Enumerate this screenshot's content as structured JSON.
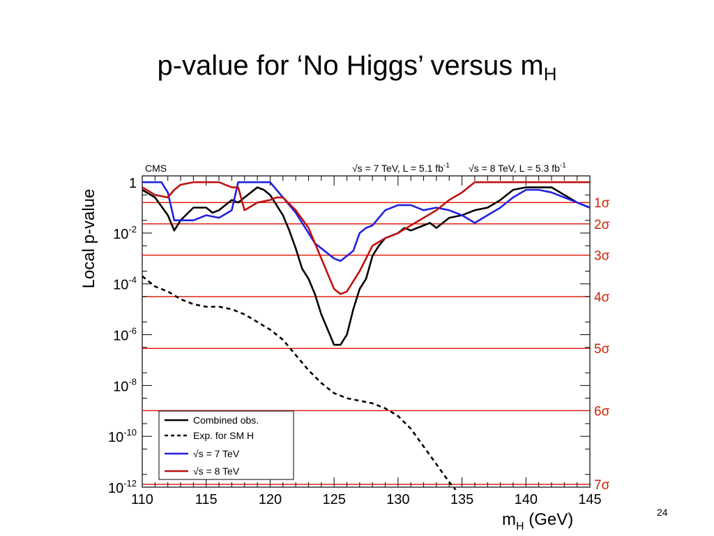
{
  "slide": {
    "title_main": "p-value for ‘No Higgs’ versus m",
    "title_sub": "H",
    "page_number": "24"
  },
  "chart_data": {
    "type": "line",
    "title": "",
    "experiment_label": "CMS",
    "energy_label_1": "√s = 7 TeV, L = 5.1 fb",
    "energy_label_1_sup": "-1",
    "energy_label_2": "√s = 8 TeV, L = 5.3 fb",
    "energy_label_2_sup": "-1",
    "xlabel_main": "m",
    "xlabel_sub": "H",
    "xlabel_rest": " (GeV)",
    "ylabel": "Local p-value",
    "x_range": [
      110,
      145
    ],
    "y_scale": "log",
    "y_range_log10": [
      -12,
      0.25
    ],
    "x_ticks": [
      110,
      115,
      120,
      125,
      130,
      135,
      140,
      145
    ],
    "y_ticks": [
      {
        "exp": 0,
        "label": "1",
        "sup": ""
      },
      {
        "exp": -2,
        "label": "10",
        "sup": "-2"
      },
      {
        "exp": -4,
        "label": "10",
        "sup": "-4"
      },
      {
        "exp": -6,
        "label": "10",
        "sup": "-6"
      },
      {
        "exp": -8,
        "label": "10",
        "sup": "-8"
      },
      {
        "exp": -10,
        "label": "10",
        "sup": "-10"
      },
      {
        "exp": -12,
        "label": "10",
        "sup": "-12"
      }
    ],
    "sigma_lines": [
      {
        "label": "1σ",
        "log10p": -0.8
      },
      {
        "label": "2σ",
        "log10p": -1.64
      },
      {
        "label": "3σ",
        "log10p": -2.87
      },
      {
        "label": "4σ",
        "log10p": -4.5
      },
      {
        "label": "5σ",
        "log10p": -6.54
      },
      {
        "label": "6σ",
        "log10p": -8.99
      },
      {
        "label": "7σ",
        "log10p": -11.89
      }
    ],
    "series": [
      {
        "name": "Combined obs.",
        "color": "#000000",
        "style": "solid",
        "points": [
          [
            110,
            -0.3
          ],
          [
            111,
            -0.6
          ],
          [
            112,
            -1.3
          ],
          [
            112.5,
            -1.9
          ],
          [
            113,
            -1.5
          ],
          [
            114,
            -1.0
          ],
          [
            115,
            -1.0
          ],
          [
            115.5,
            -1.2
          ],
          [
            116,
            -1.1
          ],
          [
            116.5,
            -0.9
          ],
          [
            117,
            -0.7
          ],
          [
            117.5,
            -0.8
          ],
          [
            118,
            -0.6
          ],
          [
            118.5,
            -0.4
          ],
          [
            119,
            -0.2
          ],
          [
            119.5,
            -0.3
          ],
          [
            120,
            -0.5
          ],
          [
            121,
            -1.3
          ],
          [
            121.5,
            -1.9
          ],
          [
            122,
            -2.6
          ],
          [
            122.5,
            -3.4
          ],
          [
            123,
            -3.8
          ],
          [
            123.5,
            -4.4
          ],
          [
            124,
            -5.2
          ],
          [
            124.5,
            -5.8
          ],
          [
            125,
            -6.4
          ],
          [
            125.5,
            -6.4
          ],
          [
            126,
            -6.0
          ],
          [
            126.5,
            -5.0
          ],
          [
            127,
            -4.2
          ],
          [
            127.5,
            -3.8
          ],
          [
            128,
            -2.9
          ],
          [
            128.5,
            -2.5
          ],
          [
            129,
            -2.2
          ],
          [
            130,
            -2.0
          ],
          [
            130.5,
            -1.8
          ],
          [
            131,
            -1.9
          ],
          [
            132,
            -1.7
          ],
          [
            132.5,
            -1.6
          ],
          [
            133,
            -1.8
          ],
          [
            134,
            -1.4
          ],
          [
            135,
            -1.3
          ],
          [
            136,
            -1.1
          ],
          [
            137,
            -1.0
          ],
          [
            138,
            -0.7
          ],
          [
            139,
            -0.3
          ],
          [
            140,
            -0.2
          ],
          [
            142,
            -0.2
          ],
          [
            143,
            -0.5
          ],
          [
            144,
            -0.8
          ],
          [
            145,
            -1.0
          ]
        ]
      },
      {
        "name": "Exp. for SM H",
        "color": "#000000",
        "style": "dashed",
        "points": [
          [
            110,
            -3.7
          ],
          [
            111,
            -4.1
          ],
          [
            112,
            -4.3
          ],
          [
            113,
            -4.6
          ],
          [
            114,
            -4.8
          ],
          [
            115,
            -4.9
          ],
          [
            116,
            -4.9
          ],
          [
            117,
            -5.0
          ],
          [
            118,
            -5.2
          ],
          [
            119,
            -5.5
          ],
          [
            120,
            -5.8
          ],
          [
            121,
            -6.2
          ],
          [
            122,
            -6.8
          ],
          [
            123,
            -7.4
          ],
          [
            124,
            -7.9
          ],
          [
            125,
            -8.3
          ],
          [
            126,
            -8.5
          ],
          [
            127,
            -8.6
          ],
          [
            128,
            -8.7
          ],
          [
            129,
            -8.9
          ],
          [
            130,
            -9.2
          ],
          [
            131,
            -9.7
          ],
          [
            132,
            -10.4
          ],
          [
            133,
            -11.1
          ],
          [
            134,
            -11.8
          ],
          [
            134.5,
            -12.1
          ]
        ]
      },
      {
        "name": "√s = 7 TeV",
        "color": "#2020e0",
        "style": "solid",
        "points": [
          [
            110,
            0
          ],
          [
            111,
            0
          ],
          [
            111.5,
            0
          ],
          [
            112,
            -0.4
          ],
          [
            112.5,
            -1.5
          ],
          [
            113,
            -1.5
          ],
          [
            114,
            -1.5
          ],
          [
            115,
            -1.3
          ],
          [
            116,
            -1.4
          ],
          [
            117,
            -1.1
          ],
          [
            117.5,
            0
          ],
          [
            118,
            0
          ],
          [
            119,
            0
          ],
          [
            120,
            0
          ],
          [
            121,
            -0.6
          ],
          [
            122,
            -1.2
          ],
          [
            123,
            -2.0
          ],
          [
            123.5,
            -2.4
          ],
          [
            124,
            -2.6
          ],
          [
            125,
            -3.0
          ],
          [
            125.5,
            -3.1
          ],
          [
            126,
            -2.9
          ],
          [
            126.5,
            -2.7
          ],
          [
            127,
            -2.0
          ],
          [
            127.5,
            -1.8
          ],
          [
            128,
            -1.7
          ],
          [
            129,
            -1.1
          ],
          [
            130,
            -0.9
          ],
          [
            131,
            -0.9
          ],
          [
            132,
            -1.1
          ],
          [
            133,
            -1.0
          ],
          [
            134,
            -1.1
          ],
          [
            135,
            -1.3
          ],
          [
            136,
            -1.6
          ],
          [
            137,
            -1.3
          ],
          [
            138,
            -1.0
          ],
          [
            139,
            -0.6
          ],
          [
            140,
            -0.3
          ],
          [
            141,
            -0.3
          ],
          [
            142,
            -0.4
          ],
          [
            143,
            -0.6
          ],
          [
            144,
            -0.8
          ],
          [
            145,
            -1.0
          ]
        ]
      },
      {
        "name": "√s = 8 TeV",
        "color": "#c01010",
        "style": "solid",
        "points": [
          [
            110,
            -0.2
          ],
          [
            111,
            -0.5
          ],
          [
            112,
            -0.6
          ],
          [
            112.5,
            -0.3
          ],
          [
            113,
            -0.1
          ],
          [
            114,
            0
          ],
          [
            115,
            0
          ],
          [
            116,
            0
          ],
          [
            117,
            -0.2
          ],
          [
            117.5,
            -0.2
          ],
          [
            118,
            -1.1
          ],
          [
            119,
            -0.8
          ],
          [
            120,
            -0.7
          ],
          [
            120.5,
            -0.6
          ],
          [
            121,
            -0.6
          ],
          [
            122,
            -1.1
          ],
          [
            123,
            -1.8
          ],
          [
            124,
            -3.0
          ],
          [
            125,
            -4.2
          ],
          [
            125.5,
            -4.4
          ],
          [
            126,
            -4.3
          ],
          [
            127,
            -3.5
          ],
          [
            128,
            -2.5
          ],
          [
            129,
            -2.2
          ],
          [
            130,
            -2.0
          ],
          [
            131,
            -1.7
          ],
          [
            132,
            -1.4
          ],
          [
            133,
            -1.1
          ],
          [
            134,
            -0.7
          ],
          [
            135,
            -0.4
          ],
          [
            136,
            0
          ],
          [
            145,
            0
          ]
        ]
      }
    ],
    "legend": {
      "position": "bottom-left",
      "entries": [
        "Combined obs.",
        "Exp. for SM H",
        "√s = 7 TeV",
        "√s = 8 TeV"
      ]
    }
  }
}
